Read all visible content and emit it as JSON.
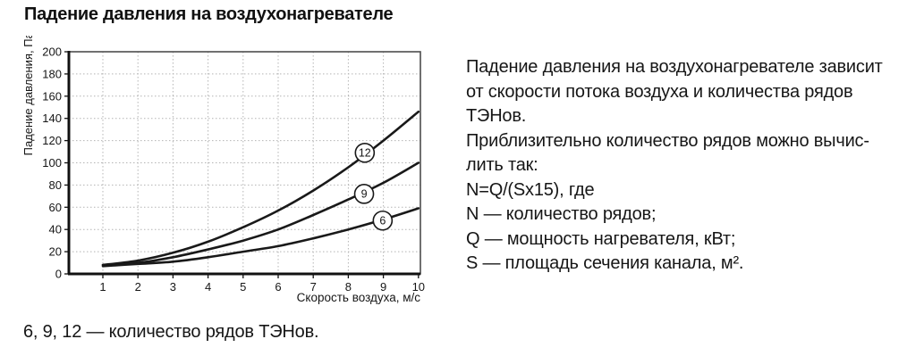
{
  "page": {
    "title": "Падение давления на воздухонагревателе",
    "caption": "6, 9, 12 — количество рядов ТЭНов."
  },
  "description": {
    "lines": [
      "Падение давления на воздухонагревателе зависит",
      "от скорости потока воздуха и количества рядов",
      "ТЭНов.",
      "Приблизительно количество рядов можно вычис-",
      "лить так:",
      "N=Q/(Sx15), где",
      "N — количество рядов;",
      "Q — мощность нагревателя, кВт;",
      "S — площадь сечения канала, м²."
    ]
  },
  "chart_data": {
    "type": "line",
    "title": "",
    "xlabel": "Скорость воздуха, м/с",
    "ylabel": "Падение давления, Па",
    "x": [
      1,
      2,
      3,
      4,
      5,
      6,
      7,
      8,
      9,
      10
    ],
    "x_ticks": [
      1,
      2,
      3,
      4,
      5,
      6,
      7,
      8,
      9,
      10
    ],
    "y_ticks": [
      0,
      20,
      40,
      60,
      80,
      100,
      120,
      140,
      160,
      180,
      200
    ],
    "xlim": [
      0,
      10.05
    ],
    "ylim": [
      0,
      200
    ],
    "grid": "dotted",
    "legend_position": "labels-on-curves",
    "series": [
      {
        "name": "12",
        "values": [
          8,
          12,
          19,
          29,
          42,
          57,
          75,
          96,
          120,
          146
        ],
        "label_at": {
          "x": 8.47,
          "y": 109
        }
      },
      {
        "name": "9",
        "values": [
          8,
          10,
          15,
          22,
          30,
          40,
          53,
          67,
          82,
          100
        ],
        "label_at": {
          "x": 8.45,
          "y": 72
        }
      },
      {
        "name": "6",
        "values": [
          7,
          9,
          11,
          15,
          20,
          25,
          32,
          40,
          49,
          59
        ],
        "label_at": {
          "x": 8.98,
          "y": 48
        }
      }
    ],
    "colors": {
      "curve": "#191919",
      "grid": "#b4b4b4",
      "axis": "#111111",
      "frame": "#4d4d4d",
      "label_circle_fill": "#ffffff"
    }
  }
}
